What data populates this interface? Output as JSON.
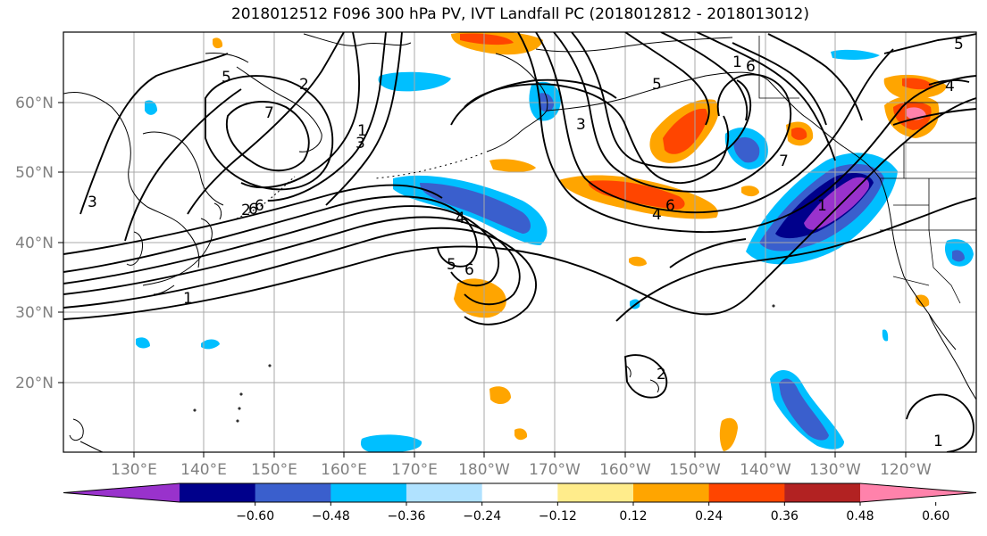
{
  "title": "2018012512 F096 300 hPa PV, IVT Landfall PC (2018012812 - 2018013012)",
  "lat_labels": [
    "60°N",
    "50°N",
    "40°N",
    "30°N",
    "20°N"
  ],
  "lon_labels": [
    "130°E",
    "140°E",
    "150°E",
    "160°E",
    "170°E",
    "180°W",
    "170°W",
    "160°W",
    "150°W",
    "140°W",
    "130°W",
    "120°W"
  ],
  "colorbar": {
    "colors": [
      "#9932cc",
      "#00008b",
      "#3a5fcd",
      "#00bfff",
      "#b0e2ff",
      "#ffffff",
      "#ffec8b",
      "#ffa500",
      "#ff4500",
      "#b22222",
      "#ff82ab"
    ],
    "tick_labels": [
      "−0.60",
      "−0.48",
      "−0.36",
      "−0.24",
      "−0.12",
      "0.12",
      "0.24",
      "0.36",
      "0.48",
      "0.60"
    ]
  },
  "contour_labels": [
    "5",
    "2",
    "7",
    "3",
    "1",
    "6",
    "3",
    "2",
    "6",
    "4",
    "5",
    "6",
    "1",
    "3",
    "5",
    "6",
    "6",
    "7",
    "1",
    "5",
    "4",
    "1",
    "4",
    "2",
    "1"
  ]
}
